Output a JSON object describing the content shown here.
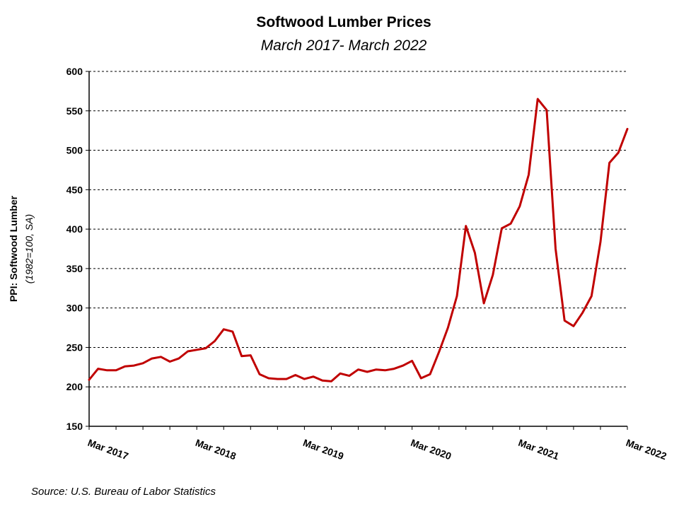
{
  "chart_data": {
    "type": "line",
    "title": "Softwood Lumber Prices",
    "subtitle": "March 2017- March 2022",
    "ylabel": "PPI: Softwood Lumber",
    "ylabel_note": "(1982=100, SA)",
    "source": "Source: U.S. Bureau of Labor Statistics",
    "ylim": [
      150,
      600
    ],
    "yticks": [
      150,
      200,
      250,
      300,
      350,
      400,
      450,
      500,
      550,
      600
    ],
    "xlim": [
      "2017-03",
      "2022-03"
    ],
    "xticks": [
      "Mar 2017",
      "Mar 2018",
      "Mar 2019",
      "Mar 2020",
      "Mar 2021",
      "Mar 2022"
    ],
    "grid": true,
    "line_color": "#C00000",
    "x": [
      "2017-03",
      "2017-04",
      "2017-05",
      "2017-06",
      "2017-07",
      "2017-08",
      "2017-09",
      "2017-10",
      "2017-11",
      "2017-12",
      "2018-01",
      "2018-02",
      "2018-03",
      "2018-04",
      "2018-05",
      "2018-06",
      "2018-07",
      "2018-08",
      "2018-09",
      "2018-10",
      "2018-11",
      "2018-12",
      "2019-01",
      "2019-02",
      "2019-03",
      "2019-04",
      "2019-05",
      "2019-06",
      "2019-07",
      "2019-08",
      "2019-09",
      "2019-10",
      "2019-11",
      "2019-12",
      "2020-01",
      "2020-02",
      "2020-03",
      "2020-04",
      "2020-05",
      "2020-06",
      "2020-07",
      "2020-08",
      "2020-09",
      "2020-10",
      "2020-11",
      "2020-12",
      "2021-01",
      "2021-02",
      "2021-03",
      "2021-04",
      "2021-05",
      "2021-06",
      "2021-07",
      "2021-08",
      "2021-09",
      "2021-10",
      "2021-11",
      "2021-12",
      "2022-01",
      "2022-02",
      "2022-03"
    ],
    "values": [
      209,
      223,
      221,
      221,
      226,
      227,
      230,
      236,
      238,
      232,
      236,
      245,
      247,
      249,
      258,
      273,
      270,
      239,
      240,
      216,
      211,
      210,
      210,
      215,
      210,
      213,
      208,
      207,
      217,
      214,
      222,
      219,
      222,
      221,
      223,
      227,
      233,
      211,
      216,
      244,
      275,
      315,
      404,
      370,
      306,
      342,
      401,
      407,
      429,
      469,
      565,
      551,
      375,
      284,
      277,
      294,
      315,
      384,
      484,
      497,
      527
    ]
  }
}
